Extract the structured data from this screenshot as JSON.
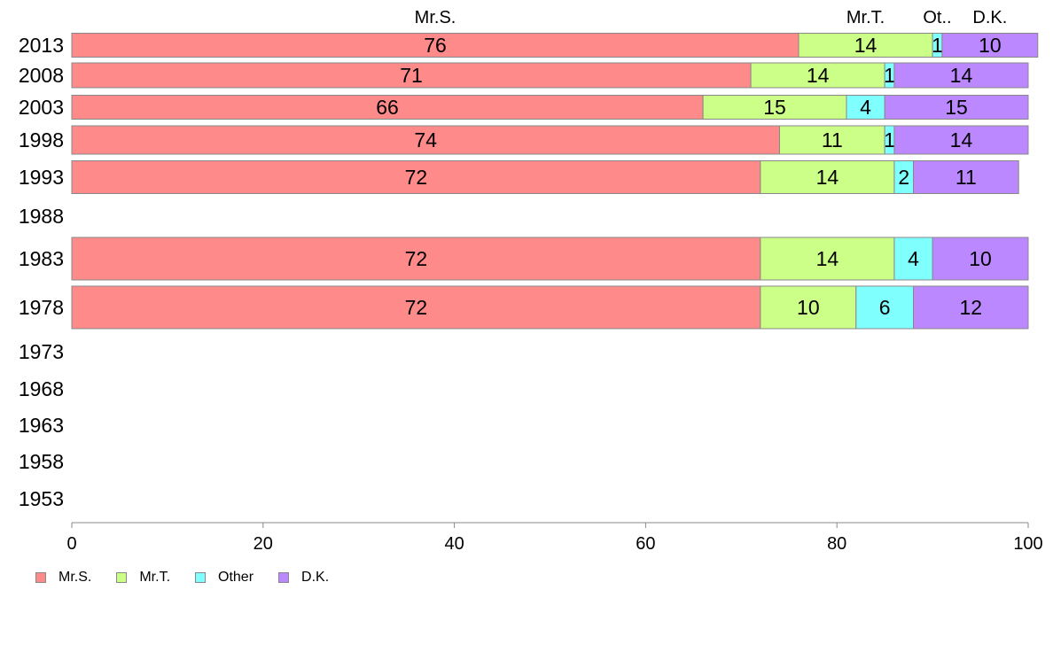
{
  "chart_data": {
    "type": "bar",
    "orientation": "horizontal",
    "stacked": true,
    "categories": [
      "2013",
      "2008",
      "2003",
      "1998",
      "1993",
      "1988",
      "1983",
      "1978",
      "1973",
      "1968",
      "1963",
      "1958",
      "1953"
    ],
    "series": [
      {
        "name": "Mr.S.",
        "color": "#ff8a8a",
        "values": [
          76,
          71,
          66,
          74,
          72,
          null,
          72,
          72,
          null,
          null,
          null,
          null,
          null
        ]
      },
      {
        "name": "Mr.T.",
        "color": "#ccff88",
        "values": [
          14,
          14,
          15,
          11,
          14,
          null,
          14,
          10,
          null,
          null,
          null,
          null,
          null
        ]
      },
      {
        "name": "Other",
        "color": "#80ffff",
        "values": [
          1,
          1,
          4,
          1,
          2,
          null,
          4,
          6,
          null,
          null,
          null,
          null,
          null
        ]
      },
      {
        "name": "D.K.",
        "color": "#bb88ff",
        "values": [
          10,
          14,
          15,
          14,
          11,
          null,
          10,
          12,
          null,
          null,
          null,
          null,
          null
        ]
      }
    ],
    "top_labels": [
      "Mr.S.",
      "Mr.T.",
      "Ot..",
      "D.K."
    ],
    "x_ticks": [
      "0",
      "20",
      "40",
      "60",
      "80",
      "100"
    ],
    "xlim": [
      0,
      100
    ],
    "legend_position": "bottom-left",
    "grid": false
  }
}
